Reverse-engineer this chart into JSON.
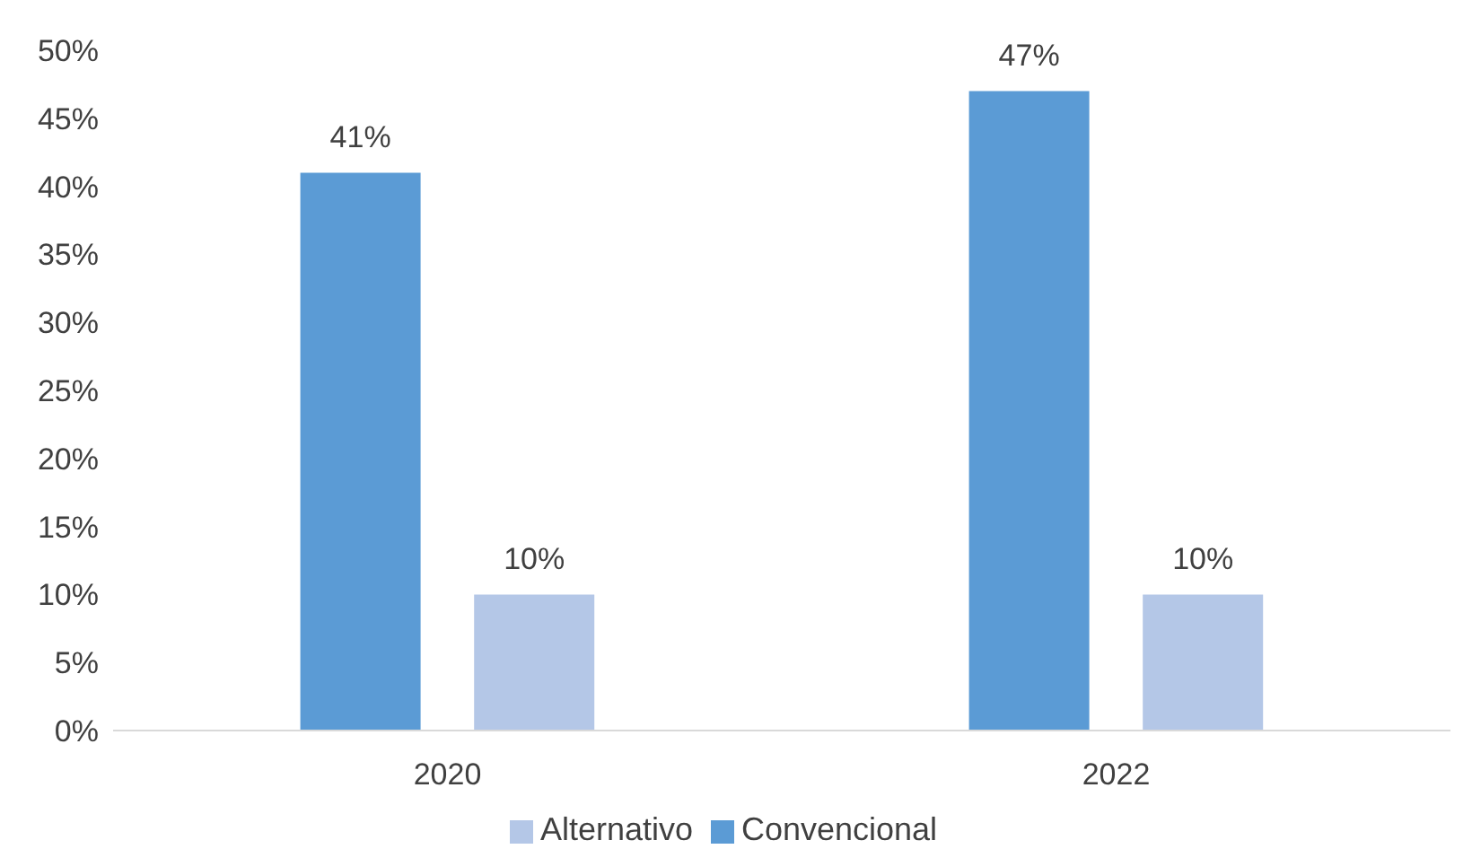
{
  "chart_data": {
    "type": "bar",
    "categories": [
      "2020",
      "2022"
    ],
    "series": [
      {
        "name": "Convencional",
        "color": "#5b9bd5",
        "values": [
          41,
          47
        ],
        "value_labels": [
          "41%",
          "47%"
        ]
      },
      {
        "name": "Alternativo",
        "color": "#b4c7e7",
        "values": [
          10,
          10
        ],
        "value_labels": [
          "10%",
          "10%"
        ]
      }
    ],
    "ylim": [
      0,
      50
    ],
    "yticks": [
      {
        "value": 0,
        "label": "0%"
      },
      {
        "value": 5,
        "label": "5%"
      },
      {
        "value": 10,
        "label": "10%"
      },
      {
        "value": 15,
        "label": "15%"
      },
      {
        "value": 20,
        "label": "20%"
      },
      {
        "value": 25,
        "label": "25%"
      },
      {
        "value": 30,
        "label": "30%"
      },
      {
        "value": 35,
        "label": "35%"
      },
      {
        "value": 40,
        "label": "40%"
      },
      {
        "value": 45,
        "label": "45%"
      },
      {
        "value": 50,
        "label": "50%"
      }
    ],
    "grid": false,
    "legend": "bottom"
  }
}
